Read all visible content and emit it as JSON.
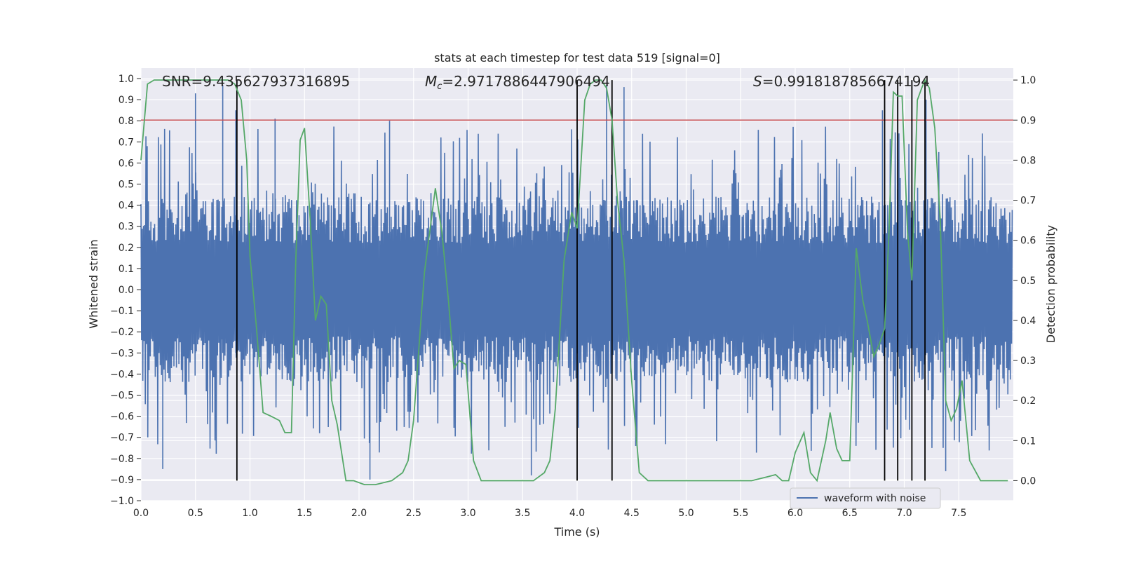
{
  "chart_data": {
    "type": "line",
    "title": "stats at each timestep for test data 519 [signal=0]",
    "xlabel": "Time (s)",
    "ylabel": "Whitened strain",
    "y2label": "Detection probability",
    "xlim": [
      0.0,
      8.0
    ],
    "ylim": [
      -1.0,
      1.05
    ],
    "y2lim": [
      -0.05,
      1.03
    ],
    "x_ticks": [
      "0.0",
      "0.5",
      "1.0",
      "1.5",
      "2.0",
      "2.5",
      "3.0",
      "3.5",
      "4.0",
      "4.5",
      "5.0",
      "5.5",
      "6.0",
      "6.5",
      "7.0",
      "7.5"
    ],
    "y_ticks": [
      "1.0",
      "0.9",
      "0.8",
      "0.7",
      "0.6",
      "0.5",
      "0.4",
      "0.3",
      "0.2",
      "0.1",
      "0.0",
      "−0.1",
      "−0.2",
      "−0.3",
      "−0.4",
      "−0.5",
      "−0.6",
      "−0.7",
      "−0.8",
      "−0.9",
      "−1.0"
    ],
    "y2_ticks": [
      "1.0",
      "0.9",
      "0.8",
      "0.7",
      "0.6",
      "0.5",
      "0.4",
      "0.3",
      "0.2",
      "0.1",
      "0.0"
    ],
    "grid": true,
    "legend": {
      "placement": "lower-center-right",
      "entries": [
        "waveform with noise"
      ]
    },
    "annotations": {
      "snr": "SNR=9.435627937316895",
      "mc_symbol": "M",
      "mc_sub": "c",
      "mc_value": "=2.9717886447906494",
      "s_symbol": "S",
      "s_value": "=0.9918187856674194"
    },
    "threshold": {
      "y2": 0.9,
      "color": "#c44e52"
    },
    "vertical_markers_x": [
      0.88,
      4.0,
      4.32,
      6.82,
      6.94,
      7.07,
      7.19
    ],
    "probability_series": {
      "name": "detection probability",
      "color": "#55a868",
      "x": [
        0.0,
        0.06,
        0.12,
        0.2,
        0.3,
        0.5,
        0.7,
        0.8,
        0.86,
        0.92,
        0.97,
        1.0,
        1.06,
        1.12,
        1.2,
        1.27,
        1.32,
        1.38,
        1.42,
        1.46,
        1.5,
        1.55,
        1.6,
        1.65,
        1.7,
        1.75,
        1.8,
        1.88,
        1.95,
        2.05,
        2.15,
        2.3,
        2.4,
        2.45,
        2.5,
        2.6,
        2.7,
        2.76,
        2.82,
        2.87,
        2.92,
        2.98,
        3.05,
        3.12,
        3.2,
        3.3,
        3.5,
        3.6,
        3.7,
        3.75,
        3.8,
        3.88,
        3.95,
        4.0,
        4.07,
        4.12,
        4.17,
        4.22,
        4.27,
        4.32,
        4.37,
        4.43,
        4.5,
        4.57,
        4.65,
        4.8,
        5.0,
        5.3,
        5.6,
        5.75,
        5.82,
        5.88,
        5.94,
        6.0,
        6.08,
        6.14,
        6.2,
        6.28,
        6.32,
        6.38,
        6.43,
        6.5,
        6.56,
        6.62,
        6.66,
        6.72,
        6.77,
        6.82,
        6.86,
        6.9,
        6.94,
        6.98,
        7.03,
        7.07,
        7.12,
        7.16,
        7.19,
        7.23,
        7.28,
        7.33,
        7.38,
        7.43,
        7.48,
        7.53,
        7.6,
        7.7,
        7.8,
        7.95
      ],
      "y": [
        0.8,
        0.99,
        1.0,
        1.0,
        1.0,
        1.0,
        1.0,
        1.0,
        0.99,
        0.95,
        0.8,
        0.56,
        0.38,
        0.17,
        0.16,
        0.15,
        0.12,
        0.12,
        0.55,
        0.85,
        0.88,
        0.66,
        0.4,
        0.46,
        0.44,
        0.2,
        0.14,
        0.0,
        0.0,
        -0.01,
        -0.01,
        0.0,
        0.02,
        0.05,
        0.15,
        0.52,
        0.73,
        0.62,
        0.45,
        0.28,
        0.3,
        0.29,
        0.05,
        0.0,
        0.0,
        0.0,
        0.0,
        0.0,
        0.02,
        0.05,
        0.18,
        0.55,
        0.67,
        0.63,
        0.95,
        0.99,
        1.0,
        1.0,
        0.98,
        0.9,
        0.7,
        0.55,
        0.25,
        0.02,
        0.0,
        0.0,
        0.0,
        0.0,
        0.0,
        0.01,
        0.015,
        0.0,
        0.0,
        0.07,
        0.12,
        0.02,
        0.0,
        0.1,
        0.17,
        0.08,
        0.05,
        0.05,
        0.58,
        0.45,
        0.4,
        0.31,
        0.34,
        0.38,
        0.62,
        0.97,
        0.96,
        0.96,
        0.62,
        0.5,
        0.95,
        0.98,
        1.0,
        0.98,
        0.88,
        0.65,
        0.2,
        0.15,
        0.18,
        0.25,
        0.05,
        0.0,
        0.0,
        0.0
      ]
    },
    "waveform_series": {
      "name": "waveform with noise",
      "color": "#4c72b0",
      "sample_count": 1400,
      "spikes": [
        {
          "x": 0.5,
          "top": 0.93
        },
        {
          "x": 0.75,
          "top": 0.97
        },
        {
          "x": 0.87,
          "top": 0.85
        },
        {
          "x": 1.23,
          "top": 0.81
        },
        {
          "x": 2.28,
          "top": 0.8
        },
        {
          "x": 4.27,
          "top": 0.97
        },
        {
          "x": 4.43,
          "top": 0.96
        },
        {
          "x": 6.8,
          "top": 0.85
        },
        {
          "x": 7.2,
          "top": 0.9
        },
        {
          "x": 2.1,
          "bottom": -0.9
        },
        {
          "x": 0.2,
          "bottom": -0.85
        },
        {
          "x": 3.58,
          "bottom": -0.88
        },
        {
          "x": 7.38,
          "bottom": -0.86
        }
      ]
    }
  }
}
